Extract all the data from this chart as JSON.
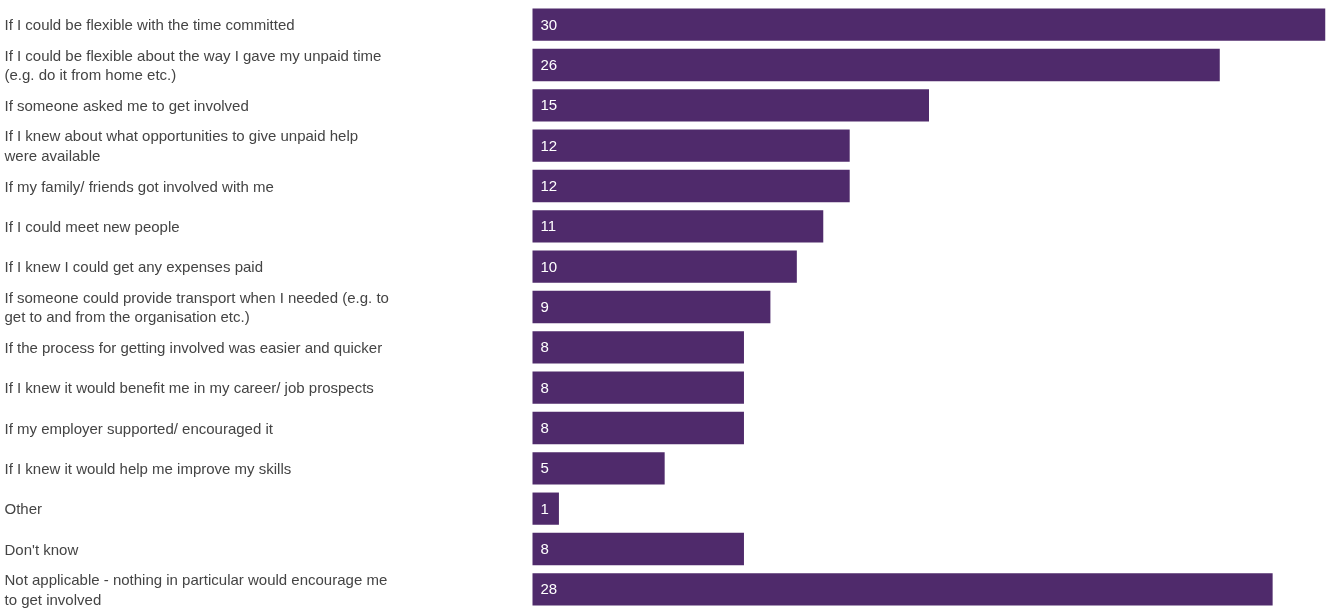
{
  "chart_data": {
    "type": "bar",
    "orientation": "horizontal",
    "categories": [
      "If I could be flexible with the time committed",
      "If I could be flexible about the way I gave my unpaid time (e.g. do it from home etc.)",
      "If someone asked me to get involved",
      "If I knew about what opportunities to give unpaid help were available",
      "If my family/ friends got involved with me",
      "If I could meet new people",
      "If I knew I could get any expenses paid",
      "If someone could provide transport when I needed (e.g. to get to and from the organisation etc.)",
      "If the process for getting involved was easier and quicker",
      "If I knew it would benefit me in my career/ job prospects",
      "If my employer supported/ encouraged it",
      "If I knew it would help me improve my skills",
      "Other",
      "Don't know",
      "Not applicable - nothing in particular would encourage me to get involved"
    ],
    "values": [
      30,
      26,
      15,
      12,
      12,
      11,
      10,
      9,
      8,
      8,
      8,
      5,
      1,
      8,
      28
    ],
    "color": "#4f2a6b",
    "data_labels": true
  }
}
